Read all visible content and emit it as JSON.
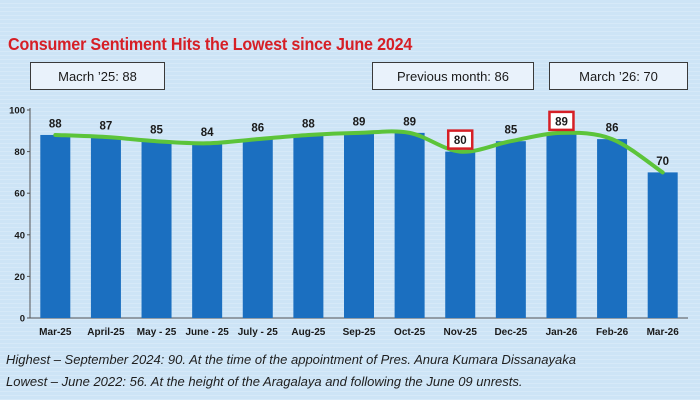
{
  "chart_data": {
    "type": "bar",
    "title": "Consumer Sentiment Hits the Lowest since June 2024",
    "categories": [
      "Mar-25",
      "April-25",
      "May - 25",
      "June - 25",
      "July - 25",
      "Aug-25",
      "Sep-25",
      "Oct-25",
      "Nov-25",
      "Dec-25",
      "Jan-26",
      "Feb-26",
      "Mar-26"
    ],
    "values": [
      88,
      87,
      85,
      84,
      86,
      88,
      89,
      89,
      80,
      85,
      89,
      86,
      70
    ],
    "trend_line": true,
    "highlighted_labels": [
      "Nov-25",
      "Jan-26"
    ],
    "ylim": [
      0,
      100
    ],
    "yticks": [
      0,
      20,
      40,
      60,
      80,
      100
    ],
    "xlabel": "",
    "ylabel": "",
    "grid": false,
    "colors": {
      "bar": "#1b6fc0",
      "line": "#5cc43a",
      "highlight_box": "#d61f26",
      "title": "#d61f26"
    }
  },
  "callouts": {
    "left": "Macrh ’25:  88",
    "prev": "Previous month: 86",
    "right": "March ’26:  70"
  },
  "footnotes": {
    "line1_label": "Highest – ",
    "line1_rest": "September 2024: 90. At the time of the appointment of Pres. Anura Kumara Dissanayaka",
    "line2": "Lowest – June 2022: 56. At the height of the Aragalaya and following the June 09 unrests."
  }
}
